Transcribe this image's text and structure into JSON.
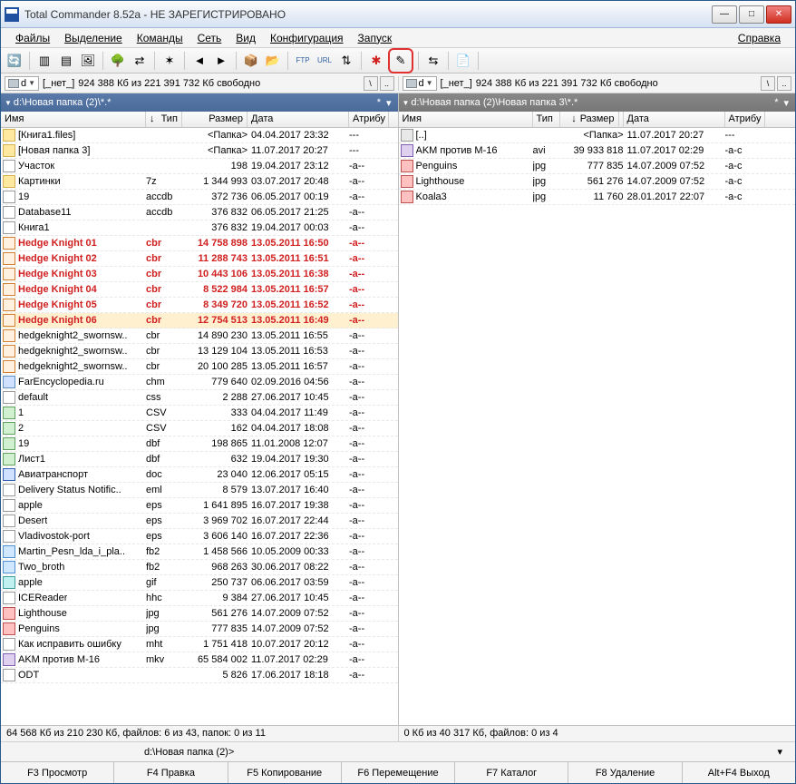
{
  "window": {
    "title": "Total Commander 8.52a - НЕ ЗАРЕГИСТРИРОВАНО"
  },
  "menu": {
    "files": "Файлы",
    "select": "Выделение",
    "commands": "Команды",
    "net": "Сеть",
    "view": "Вид",
    "config": "Конфигурация",
    "start": "Запуск",
    "help": "Справка"
  },
  "drive": {
    "letter": "d",
    "label": "[_нет_]",
    "space_left": "924 388 Кб из 221 391 732 Кб свободно"
  },
  "left": {
    "path": "d:\\Новая папка (2)\\*.*",
    "status": "64 568 Кб из 210 230 Кб, файлов: 6 из 43, папок: 0 из 11",
    "headers": {
      "name": "Имя",
      "ext": "Тип",
      "size": "Размер",
      "date": "Дата",
      "attr": "Атрибу"
    },
    "files": [
      {
        "ico": "folder",
        "name": "[Книга1.files]",
        "ext": "",
        "size": "<Папка>",
        "date": "04.04.2017 23:32",
        "attr": "---"
      },
      {
        "ico": "folder",
        "name": "[Новая папка 3]",
        "ext": "",
        "size": "<Папка>",
        "date": "11.07.2017 20:27",
        "attr": "---"
      },
      {
        "ico": "file",
        "name": "Участок",
        "ext": "",
        "size": "198",
        "date": "19.04.2017 23:12",
        "attr": "-a--"
      },
      {
        "ico": "folder",
        "name": "Картинки",
        "ext": "7z",
        "size": "1 344 993",
        "date": "03.07.2017 20:48",
        "attr": "-a--"
      },
      {
        "ico": "file",
        "name": "19",
        "ext": "accdb",
        "size": "372 736",
        "date": "06.05.2017 00:19",
        "attr": "-a--"
      },
      {
        "ico": "file",
        "name": "Database11",
        "ext": "accdb",
        "size": "376 832",
        "date": "06.05.2017 21:25",
        "attr": "-a--"
      },
      {
        "ico": "file",
        "name": "Книга1",
        "ext": "",
        "size": "376 832",
        "date": "19.04.2017 00:03",
        "attr": "-a--"
      },
      {
        "ico": "cbr",
        "name": "Hedge Knight 01",
        "ext": "cbr",
        "size": "14 758 898",
        "date": "13.05.2011 16:50",
        "attr": "-a--",
        "red": true
      },
      {
        "ico": "cbr",
        "name": "Hedge Knight 02",
        "ext": "cbr",
        "size": "11 288 743",
        "date": "13.05.2011 16:51",
        "attr": "-a--",
        "red": true
      },
      {
        "ico": "cbr",
        "name": "Hedge Knight 03",
        "ext": "cbr",
        "size": "10 443 106",
        "date": "13.05.2011 16:38",
        "attr": "-a--",
        "red": true
      },
      {
        "ico": "cbr",
        "name": "Hedge Knight 04",
        "ext": "cbr",
        "size": "8 522 984",
        "date": "13.05.2011 16:57",
        "attr": "-a--",
        "red": true
      },
      {
        "ico": "cbr",
        "name": "Hedge Knight 05",
        "ext": "cbr",
        "size": "8 349 720",
        "date": "13.05.2011 16:52",
        "attr": "-a--",
        "red": true
      },
      {
        "ico": "cbr",
        "name": "Hedge Knight 06",
        "ext": "cbr",
        "size": "12 754 513",
        "date": "13.05.2011 16:49",
        "attr": "-a--",
        "red": true,
        "sel": true
      },
      {
        "ico": "cbr",
        "name": "hedgeknight2_swornsw..",
        "ext": "cbr",
        "size": "14 890 230",
        "date": "13.05.2011 16:55",
        "attr": "-a--"
      },
      {
        "ico": "cbr",
        "name": "hedgeknight2_swornsw..",
        "ext": "cbr",
        "size": "13 129 104",
        "date": "13.05.2011 16:53",
        "attr": "-a--"
      },
      {
        "ico": "cbr",
        "name": "hedgeknight2_swornsw..",
        "ext": "cbr",
        "size": "20  100 285",
        "date": "13.05.2011 16:57",
        "attr": "-a--"
      },
      {
        "ico": "chm",
        "name": "FarEncyclopedia.ru",
        "ext": "chm",
        "size": "779 640",
        "date": "02.09.2016 04:56",
        "attr": "-a--"
      },
      {
        "ico": "file",
        "name": "default",
        "ext": "css",
        "size": "2 288",
        "date": "27.06.2017 10:45",
        "attr": "-a--"
      },
      {
        "ico": "csv",
        "name": "1",
        "ext": "CSV",
        "size": "333",
        "date": "04.04.2017 11:49",
        "attr": "-a--"
      },
      {
        "ico": "csv",
        "name": "2",
        "ext": "CSV",
        "size": "162",
        "date": "04.04.2017 18:08",
        "attr": "-a--"
      },
      {
        "ico": "csv",
        "name": "19",
        "ext": "dbf",
        "size": "198 865",
        "date": "11.01.2008 12:07",
        "attr": "-a--"
      },
      {
        "ico": "csv",
        "name": "Лист1",
        "ext": "dbf",
        "size": "632",
        "date": "19.04.2017 19:30",
        "attr": "-a--"
      },
      {
        "ico": "doc",
        "name": "Авиатранспорт",
        "ext": "doc",
        "size": "23 040",
        "date": "12.06.2017 05:15",
        "attr": "-a--"
      },
      {
        "ico": "file",
        "name": "Delivery Status Notific..",
        "ext": "eml",
        "size": "8 579",
        "date": "13.07.2017 16:40",
        "attr": "-a--"
      },
      {
        "ico": "file",
        "name": "apple",
        "ext": "eps",
        "size": "1 641 895",
        "date": "16.07.2017 19:38",
        "attr": "-a--"
      },
      {
        "ico": "file",
        "name": "Desert",
        "ext": "eps",
        "size": "3 969 702",
        "date": "16.07.2017 22:44",
        "attr": "-a--"
      },
      {
        "ico": "file",
        "name": "Vladivostok-port",
        "ext": "eps",
        "size": "3 606 140",
        "date": "16.07.2017 22:36",
        "attr": "-a--"
      },
      {
        "ico": "fb2",
        "name": "Martin_Pesn_lda_i_pla..",
        "ext": "fb2",
        "size": "1 458 566",
        "date": "10.05.2009 00:33",
        "attr": "-a--"
      },
      {
        "ico": "fb2",
        "name": "Two_broth",
        "ext": "fb2",
        "size": "968 263",
        "date": "30.06.2017 08:22",
        "attr": "-a--"
      },
      {
        "ico": "gif",
        "name": "apple",
        "ext": "gif",
        "size": "250 737",
        "date": "06.06.2017 03:59",
        "attr": "-a--"
      },
      {
        "ico": "file",
        "name": "ICEReader",
        "ext": "hhc",
        "size": "9 384",
        "date": "27.06.2017 10:45",
        "attr": "-a--"
      },
      {
        "ico": "jpg",
        "name": "Lighthouse",
        "ext": "jpg",
        "size": "561 276",
        "date": "14.07.2009 07:52",
        "attr": "-a--"
      },
      {
        "ico": "jpg",
        "name": "Penguins",
        "ext": "jpg",
        "size": "777 835",
        "date": "14.07.2009 07:52",
        "attr": "-a--"
      },
      {
        "ico": "file",
        "name": "Как исправить ошибку",
        "ext": "mht",
        "size": "1 751 418",
        "date": "10.07.2017 20:12",
        "attr": "-a--"
      },
      {
        "ico": "mkv",
        "name": "AKM против М-16",
        "ext": "mkv",
        "size": "65  584 002",
        "date": "11.07.2017 02:29",
        "attr": "-a--"
      },
      {
        "ico": "file",
        "name": "ODT",
        "ext": "",
        "size": "5 826",
        "date": "17.06.2017 18:18",
        "attr": "-a--"
      }
    ]
  },
  "right": {
    "path": "d:\\Новая папка (2)\\Новая папка 3\\*.*",
    "status": "0 Кб из 40 317 Кб, файлов: 0 из 4",
    "headers": {
      "name": "Имя",
      "ext": "Тип",
      "size": "Размер",
      "date": "Дата",
      "attr": "Атрибу"
    },
    "files": [
      {
        "ico": "updir",
        "name": "[..]",
        "ext": "",
        "size": "<Папка>",
        "date": "11.07.2017 20:27",
        "attr": "---"
      },
      {
        "ico": "avi",
        "name": "AKM против М-16",
        "ext": "avi",
        "size": "39 933 818",
        "date": "11.07.2017 02:29",
        "attr": "-a-c"
      },
      {
        "ico": "jpg",
        "name": "Penguins",
        "ext": "jpg",
        "size": "777 835",
        "date": "14.07.2009 07:52",
        "attr": "-a-c"
      },
      {
        "ico": "jpg",
        "name": "Lighthouse",
        "ext": "jpg",
        "size": "561 276",
        "date": "14.07.2009 07:52",
        "attr": "-a-c"
      },
      {
        "ico": "jpg",
        "name": "Koala3",
        "ext": "jpg",
        "size": "11 760",
        "date": "28.01.2017 22:07",
        "attr": "-a-c"
      }
    ]
  },
  "cmd": {
    "prompt": "d:\\Новая папка (2)>"
  },
  "fkeys": {
    "f3": "F3 Просмотр",
    "f4": "F4 Правка",
    "f5": "F5 Копирование",
    "f6": "F6 Перемещение",
    "f7": "F7 Каталог",
    "f8": "F8 Удаление",
    "altf4": "Alt+F4 Выход"
  }
}
